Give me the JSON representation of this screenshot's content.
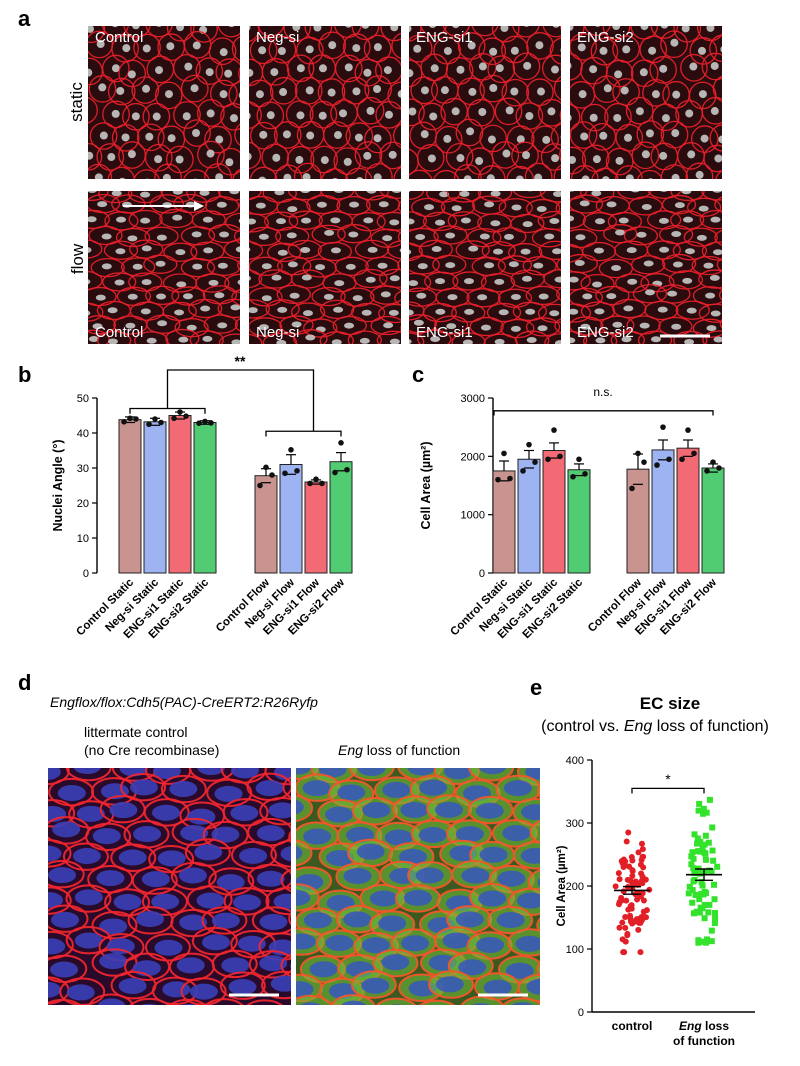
{
  "panel_a": {
    "letter": "a",
    "row_labels": [
      "static",
      "flow"
    ],
    "static_labels": [
      "Control",
      "Neg-si",
      "ENG-si1",
      "ENG-si2"
    ],
    "flow_labels": [
      "Control",
      "Neg-si",
      "ENG-si1",
      "ENG-si2"
    ]
  },
  "panel_b": {
    "letter": "b"
  },
  "panel_c": {
    "letter": "c"
  },
  "panel_d": {
    "letter": "d",
    "genotype": "Engflox/flox:Cdh5(PAC)-CreERT2:R26Ryfp",
    "left_title_1": "littermate control",
    "left_title_2": "(no Cre recombinase)",
    "right_title_italic": "Eng",
    "right_title_rest": " loss of function"
  },
  "panel_e": {
    "letter": "e"
  },
  "colors": {
    "control": "#c99390",
    "negsi": "#9db3f2",
    "engsi1": "#f26b74",
    "engsi2": "#52cc72",
    "e_control": "#e21e26",
    "e_eng": "#33e22b"
  },
  "chart_data": [
    {
      "type": "bar",
      "panel": "b",
      "ylabel": "Nuclei Angle (°)",
      "ylim": [
        0,
        50
      ],
      "yticks": [
        0,
        10,
        20,
        30,
        40,
        50
      ],
      "categories": [
        "Control Static",
        "Neg-si Static",
        "ENG-si1 Static",
        "ENG-si2 Static",
        "Control Flow",
        "Neg-si Flow",
        "ENG-si1 Flow",
        "ENG-si2 Flow"
      ],
      "values": [
        43.8,
        43.2,
        45.0,
        43.0,
        27.8,
        31.0,
        26.0,
        31.8
      ],
      "errors": [
        0.8,
        1.0,
        1.0,
        0.5,
        2.0,
        2.8,
        0.6,
        2.6
      ],
      "points": [
        [
          43.2,
          44.2,
          44.0
        ],
        [
          42.5,
          44.0,
          43.0
        ],
        [
          44.2,
          46.0,
          44.8
        ],
        [
          42.8,
          43.3,
          42.9
        ],
        [
          25.0,
          30.2,
          28.0
        ],
        [
          28.5,
          35.2,
          29.2
        ],
        [
          25.6,
          26.8,
          25.6
        ],
        [
          28.7,
          37.2,
          29.5
        ]
      ],
      "annotation": "**"
    },
    {
      "type": "bar",
      "panel": "c",
      "ylabel": "Cell Area (µm²)",
      "ylim": [
        0,
        3000
      ],
      "yticks": [
        0,
        1000,
        2000,
        3000
      ],
      "categories": [
        "Control Static",
        "Neg-si Static",
        "ENG-si1 Static",
        "ENG-si2 Static",
        "Control Flow",
        "Neg-si Flow",
        "ENG-si1 Flow",
        "ENG-si2 Flow"
      ],
      "values": [
        1750,
        1950,
        2100,
        1770,
        1780,
        2110,
        2140,
        1800
      ],
      "errors": [
        170,
        150,
        130,
        100,
        260,
        170,
        140,
        70
      ],
      "points": [
        [
          1600,
          2050,
          1620
        ],
        [
          1750,
          2200,
          1900
        ],
        [
          1950,
          2450,
          2000
        ],
        [
          1650,
          1950,
          1700
        ],
        [
          1450,
          2050,
          1900
        ],
        [
          1850,
          2500,
          1950
        ],
        [
          1950,
          2450,
          2050
        ],
        [
          1750,
          1900,
          1800
        ]
      ],
      "annotation": "n.s."
    },
    {
      "type": "scatter",
      "panel": "e",
      "title": "EC size",
      "subtitle_pre": "(control vs. ",
      "subtitle_italic": "Eng",
      "subtitle_post": " loss of function)",
      "ylabel": "Cell Area (µm²)",
      "ylim": [
        0,
        400
      ],
      "yticks": [
        0,
        100,
        200,
        300,
        400
      ],
      "groups": [
        {
          "name": "control",
          "mean": 193,
          "sem": 6
        },
        {
          "name": "Eng loss of function",
          "name_italic": "Eng",
          "name_rest": " loss",
          "name_line2": "of function",
          "mean": 218,
          "sem": 9
        }
      ],
      "annotation": "*"
    }
  ]
}
